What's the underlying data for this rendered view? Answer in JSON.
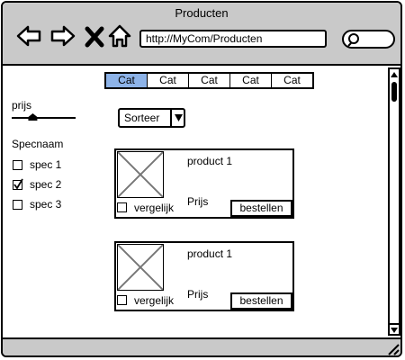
{
  "window": {
    "title": "Producten",
    "url": "http://MyCom/Producten"
  },
  "tabs": [
    "Cat",
    "Cat",
    "Cat",
    "Cat",
    "Cat"
  ],
  "filter": {
    "price_label": "prijs",
    "price_level": 0.33,
    "spec_title": "Specnaam",
    "specs": [
      {
        "label": "spec 1",
        "checked": false
      },
      {
        "label": "spec 2",
        "checked": true
      },
      {
        "label": "spec 3",
        "checked": false
      }
    ]
  },
  "sort": {
    "label": "Sorteer"
  },
  "products": [
    {
      "name": "product 1",
      "price_label": "Prijs",
      "compare_label": "vergelijk",
      "order_label": "bestellen"
    },
    {
      "name": "product 1",
      "price_label": "Prijs",
      "compare_label": "vergelijk",
      "order_label": "bestellen"
    }
  ]
}
